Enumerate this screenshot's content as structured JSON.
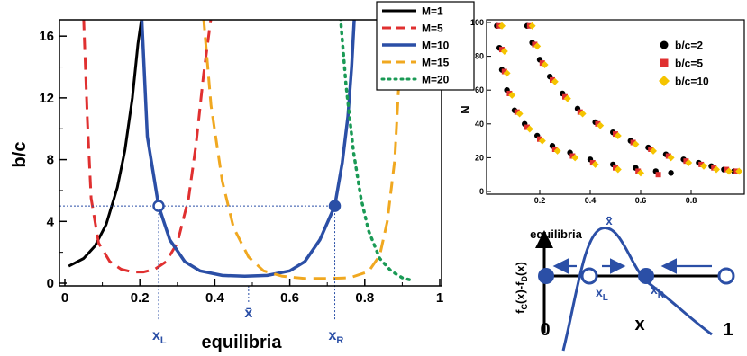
{
  "chart_data": [
    {
      "type": "line",
      "xlabel": "equilibria",
      "ylabel": "b/c",
      "xlim": [
        0,
        1
      ],
      "ylim": [
        0,
        17
      ],
      "x_ticks": [
        "0",
        "0.2",
        "0.4",
        "0.6",
        "0.8",
        "1"
      ],
      "y_ticks": [
        "0",
        "4",
        "8",
        "12",
        "16"
      ],
      "legend_position": "top-right",
      "grid": false,
      "series": [
        {
          "name": "M=1",
          "color": "#000000",
          "style": "solid",
          "x": [
            0.01,
            0.05,
            0.08,
            0.11,
            0.14,
            0.16,
            0.18,
            0.195,
            0.205
          ],
          "y": [
            1.1,
            1.6,
            2.4,
            3.8,
            6.2,
            8.6,
            12.0,
            15.5,
            17.2
          ]
        },
        {
          "name": "M=5",
          "color": "#e03030",
          "style": "dashed",
          "x": [
            0.05,
            0.06,
            0.07,
            0.09,
            0.12,
            0.15,
            0.18,
            0.21,
            0.24,
            0.27,
            0.3,
            0.33,
            0.35,
            0.37,
            0.39
          ],
          "y": [
            17.2,
            10.5,
            5.5,
            2.6,
            1.4,
            0.9,
            0.72,
            0.72,
            0.9,
            1.4,
            2.6,
            5.5,
            9.0,
            13.5,
            17.2
          ]
        },
        {
          "name": "M=10",
          "color": "#2b4fa6",
          "style": "solid",
          "x": [
            0.205,
            0.22,
            0.25,
            0.28,
            0.32,
            0.36,
            0.42,
            0.48,
            0.54,
            0.6,
            0.64,
            0.68,
            0.72,
            0.74,
            0.755,
            0.765,
            0.772
          ],
          "y": [
            17.2,
            9.5,
            5.0,
            2.8,
            1.4,
            0.8,
            0.5,
            0.45,
            0.5,
            0.8,
            1.4,
            2.8,
            5.0,
            7.8,
            10.8,
            14.0,
            17.2
          ]
        },
        {
          "name": "M=15",
          "color": "#f0a820",
          "style": "dashed",
          "x": [
            0.37,
            0.39,
            0.42,
            0.45,
            0.49,
            0.53,
            0.58,
            0.64,
            0.7,
            0.76,
            0.81,
            0.84,
            0.86,
            0.88,
            0.89,
            0.895
          ],
          "y": [
            17.2,
            11.5,
            6.6,
            3.6,
            1.7,
            0.8,
            0.45,
            0.3,
            0.3,
            0.35,
            0.75,
            1.8,
            4.0,
            8.0,
            12.5,
            17.2
          ]
        },
        {
          "name": "M=20",
          "color": "#1a9a55",
          "style": "dotted",
          "x": [
            0.735,
            0.75,
            0.77,
            0.79,
            0.81,
            0.84,
            0.87,
            0.9,
            0.93
          ],
          "y": [
            17.2,
            12.8,
            8.5,
            5.5,
            3.4,
            1.6,
            0.8,
            0.35,
            0.15
          ]
        }
      ],
      "annotations": {
        "threshold_line": {
          "y": 5
        },
        "xL": {
          "label": "x",
          "sub": "L",
          "x": 0.25,
          "y": 5
        },
        "xR": {
          "label": "x",
          "sub": "R",
          "x": 0.72,
          "y": 5
        },
        "xbar": {
          "label": "x̄",
          "x": 0.49
        }
      }
    },
    {
      "type": "scatter",
      "xlabel": "equilibria",
      "ylabel": "N",
      "xlim": [
        0,
        1
      ],
      "ylim": [
        0,
        100
      ],
      "x_ticks": [
        "0.2",
        "0.4",
        "0.6",
        "0.8"
      ],
      "y_ticks": [
        "0",
        "20",
        "40",
        "60",
        "80",
        "100"
      ],
      "legend_position": "top-right",
      "series": [
        {
          "name": "b/c=2",
          "color": "#000000",
          "marker": "circle",
          "groups": [
            {
              "x": [
                0.03,
                0.04,
                0.05,
                0.07,
                0.1,
                0.14,
                0.19,
                0.25,
                0.32,
                0.4,
                0.49,
                0.58,
                0.66,
                0.72
              ],
              "y": [
                98,
                85,
                72,
                60,
                48,
                40,
                33,
                27,
                23,
                19,
                16,
                14,
                12,
                11
              ]
            },
            {
              "x": [
                0.15,
                0.17,
                0.2,
                0.24,
                0.29,
                0.35,
                0.42,
                0.49,
                0.56,
                0.63,
                0.7,
                0.77,
                0.83,
                0.88,
                0.93,
                0.97
              ],
              "y": [
                98,
                88,
                78,
                68,
                58,
                49,
                41,
                35,
                30,
                26,
                22,
                19,
                17,
                15,
                13,
                12
              ]
            }
          ]
        },
        {
          "name": "b/c=5",
          "color": "#e03030",
          "marker": "square",
          "groups": [
            {
              "x": [
                0.04,
                0.05,
                0.06,
                0.08,
                0.11,
                0.15,
                0.2,
                0.26,
                0.33,
                0.41,
                0.5,
                0.59,
                0.67
              ],
              "y": [
                98,
                84,
                71,
                58,
                47,
                38,
                31,
                25,
                21,
                17,
                14,
                12,
                10
              ]
            },
            {
              "x": [
                0.16,
                0.18,
                0.21,
                0.25,
                0.3,
                0.36,
                0.43,
                0.5,
                0.57,
                0.64,
                0.71,
                0.78,
                0.84,
                0.89,
                0.94,
                0.98
              ],
              "y": [
                98,
                87,
                76,
                66,
                56,
                47,
                40,
                34,
                29,
                25,
                21,
                18,
                16,
                14,
                13,
                12
              ]
            }
          ]
        },
        {
          "name": "b/c=10",
          "color": "#f5c400",
          "marker": "diamond",
          "groups": [
            {
              "x": [
                0.05,
                0.06,
                0.07,
                0.09,
                0.12,
                0.16,
                0.21,
                0.27,
                0.34,
                0.42,
                0.51,
                0.6
              ],
              "y": [
                98,
                83,
                70,
                57,
                46,
                37,
                30,
                24,
                20,
                16,
                13,
                11
              ]
            },
            {
              "x": [
                0.17,
                0.19,
                0.22,
                0.26,
                0.31,
                0.37,
                0.44,
                0.51,
                0.58,
                0.65,
                0.72,
                0.79,
                0.85,
                0.9,
                0.95,
                0.99
              ],
              "y": [
                98,
                86,
                75,
                65,
                55,
                46,
                39,
                33,
                28,
                24,
                20,
                17,
                15,
                13,
                12,
                12
              ]
            }
          ]
        }
      ]
    },
    {
      "type": "diagram",
      "ylabel": "f_C(x)-f_D(x)",
      "xlabel": "x",
      "end_labels": [
        "0",
        "1"
      ],
      "points": [
        {
          "x": 0,
          "state": "stable"
        },
        {
          "x": 0.25,
          "state": "unstable",
          "label": "x",
          "sub": "L"
        },
        {
          "x": 0.6,
          "state": "stable",
          "label": "x",
          "sub": "R"
        },
        {
          "x": 1,
          "state": "unstable"
        }
      ],
      "peak_label": "x̄"
    }
  ],
  "colors": {
    "highlight": "#2b4fa6",
    "axis": "#000000"
  }
}
